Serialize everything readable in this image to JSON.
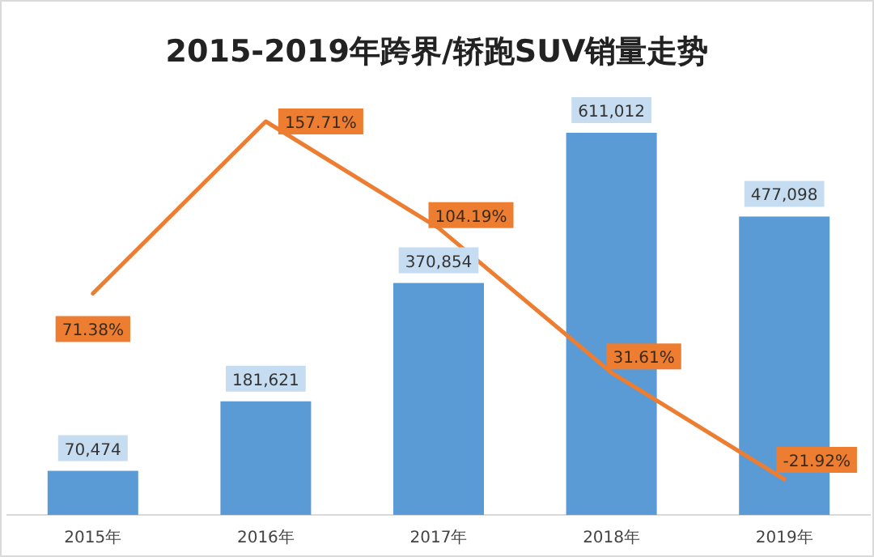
{
  "chart_data": {
    "type": "bar",
    "title": "2015-2019年跨界/轿跑SUV销量走势",
    "categories": [
      "2015年",
      "2016年",
      "2017年",
      "2018年",
      "2019年"
    ],
    "series": [
      {
        "color": "#5b9bd5",
        "values": [
          70474,
          181621,
          370854,
          611012,
          477098
        ],
        "value_labels": [
          "70,474",
          "181,621",
          "370,854",
          "611,012",
          "477,098"
        ]
      },
      {
        "type": "line",
        "axis": "y2",
        "color": "#ed7d31",
        "values": [
          71.38,
          157.71,
          104.19,
          31.61,
          -21.92
        ],
        "value_labels": [
          "71.38%",
          "157.71%",
          "104.19%",
          "31.61%",
          "-21.92%"
        ]
      }
    ],
    "grid": false
  }
}
